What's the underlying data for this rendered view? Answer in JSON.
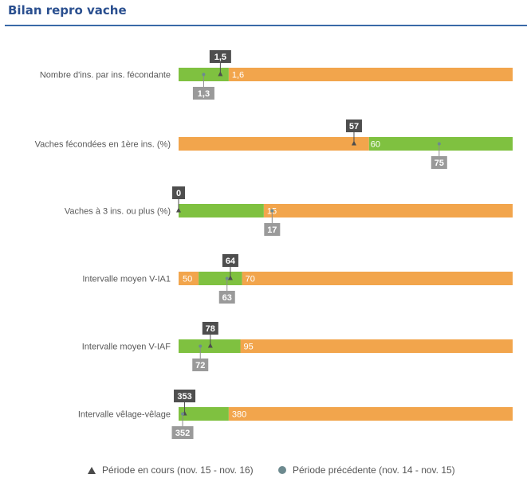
{
  "header": {
    "title": "Bilan repro vache"
  },
  "colors": {
    "orange": "#f2a54c",
    "green": "#7fc140",
    "current_label_bg": "#4e4e4e",
    "previous_label_bg": "#9a9a9a",
    "label_text_gray": "#595959"
  },
  "chart_data": {
    "type": "bar",
    "rows": [
      {
        "label": "Nombre d'ins. par ins. fécondante",
        "current": "1,5",
        "previous": "1,3",
        "orange_value": "1,6",
        "green": [
          0.0,
          0.15
        ],
        "orange": [
          0.15,
          1.0
        ],
        "orange_value_pos": 0.15,
        "current_pos": 0.125,
        "previous_pos": 0.075
      },
      {
        "label": "Vaches fécondées en 1ère ins. (%)",
        "current": "57",
        "previous": "75",
        "orange_value": "60",
        "green": [
          0.57,
          1.0
        ],
        "orange": [
          0.0,
          0.57
        ],
        "orange_value_pos": 0.565,
        "current_pos": 0.525,
        "previous_pos": 0.78
      },
      {
        "label": "Vaches à 3 ins. ou plus (%)",
        "current": "0",
        "previous": "17",
        "orange_value": "15",
        "green": [
          0.0,
          0.255
        ],
        "orange": [
          0.255,
          1.0
        ],
        "orange_value_pos": 0.255,
        "current_pos": 0.0,
        "previous_pos": 0.28
      },
      {
        "label": "Intervalle moyen V-IA1",
        "current": "64",
        "previous": "63",
        "orange_value_left": "50",
        "orange_value": "70",
        "green": [
          0.06,
          0.19
        ],
        "orange": [
          [
            0.0,
            0.06
          ],
          [
            0.19,
            1.0
          ]
        ],
        "orange_value_pos": 0.19,
        "current_pos": 0.155,
        "previous_pos": 0.145
      },
      {
        "label": "Intervalle moyen V-IAF",
        "current": "78",
        "previous": "72",
        "orange_value": "95",
        "green": [
          0.0,
          0.185
        ],
        "orange": [
          0.185,
          1.0
        ],
        "orange_value_pos": 0.185,
        "current_pos": 0.095,
        "previous_pos": 0.065
      },
      {
        "label": "Intervalle vêlage-vêlage",
        "current": "353",
        "previous": "352",
        "orange_value": "380",
        "green": [
          0.0,
          0.15
        ],
        "orange": [
          0.15,
          1.0
        ],
        "orange_value_pos": 0.15,
        "current_pos": 0.018,
        "previous_pos": 0.012
      }
    ],
    "legend": {
      "current": "Période en cours (nov. 15 - nov. 16)",
      "previous": "Période précédente (nov. 14 - nov. 15)"
    }
  }
}
